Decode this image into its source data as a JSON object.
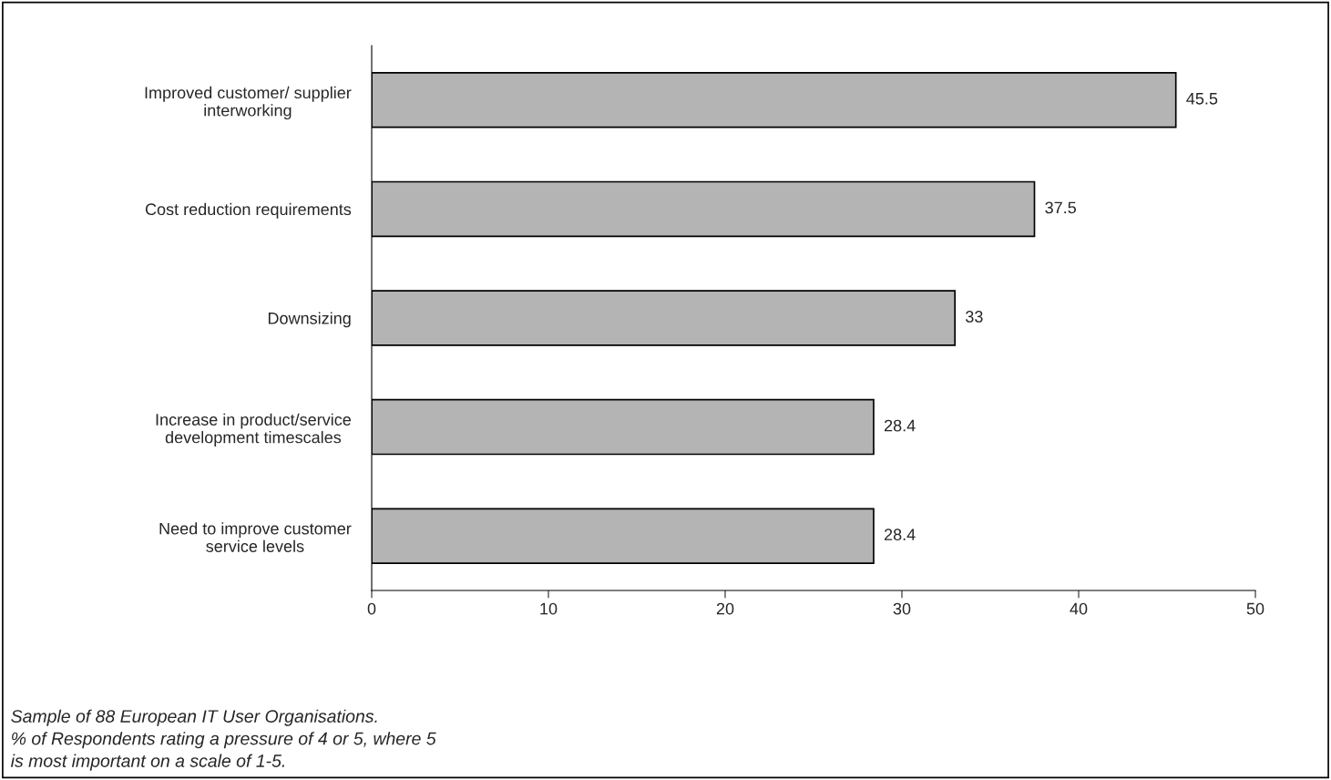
{
  "chart_data": {
    "type": "bar",
    "orientation": "horizontal",
    "categories": [
      "Improved customer/ supplier\ninterworking",
      "Cost reduction requirements",
      "Downsizing",
      "Increase in product/service\ndevelopment timescales",
      "Need to improve customer\nservice levels"
    ],
    "values": [
      45.5,
      37.5,
      33,
      28.4,
      28.4
    ],
    "color": "#b4b4b4",
    "xlim": [
      0,
      50
    ],
    "xticks": [
      0,
      10,
      20,
      30,
      40,
      50
    ],
    "grid": false,
    "data_labels": true,
    "annotations": [
      "Sample of 88 European IT User Organisations.\n% of Respondents rating a pressure of 4 or 5, where 5\nis most important on a scale of 1-5."
    ]
  }
}
